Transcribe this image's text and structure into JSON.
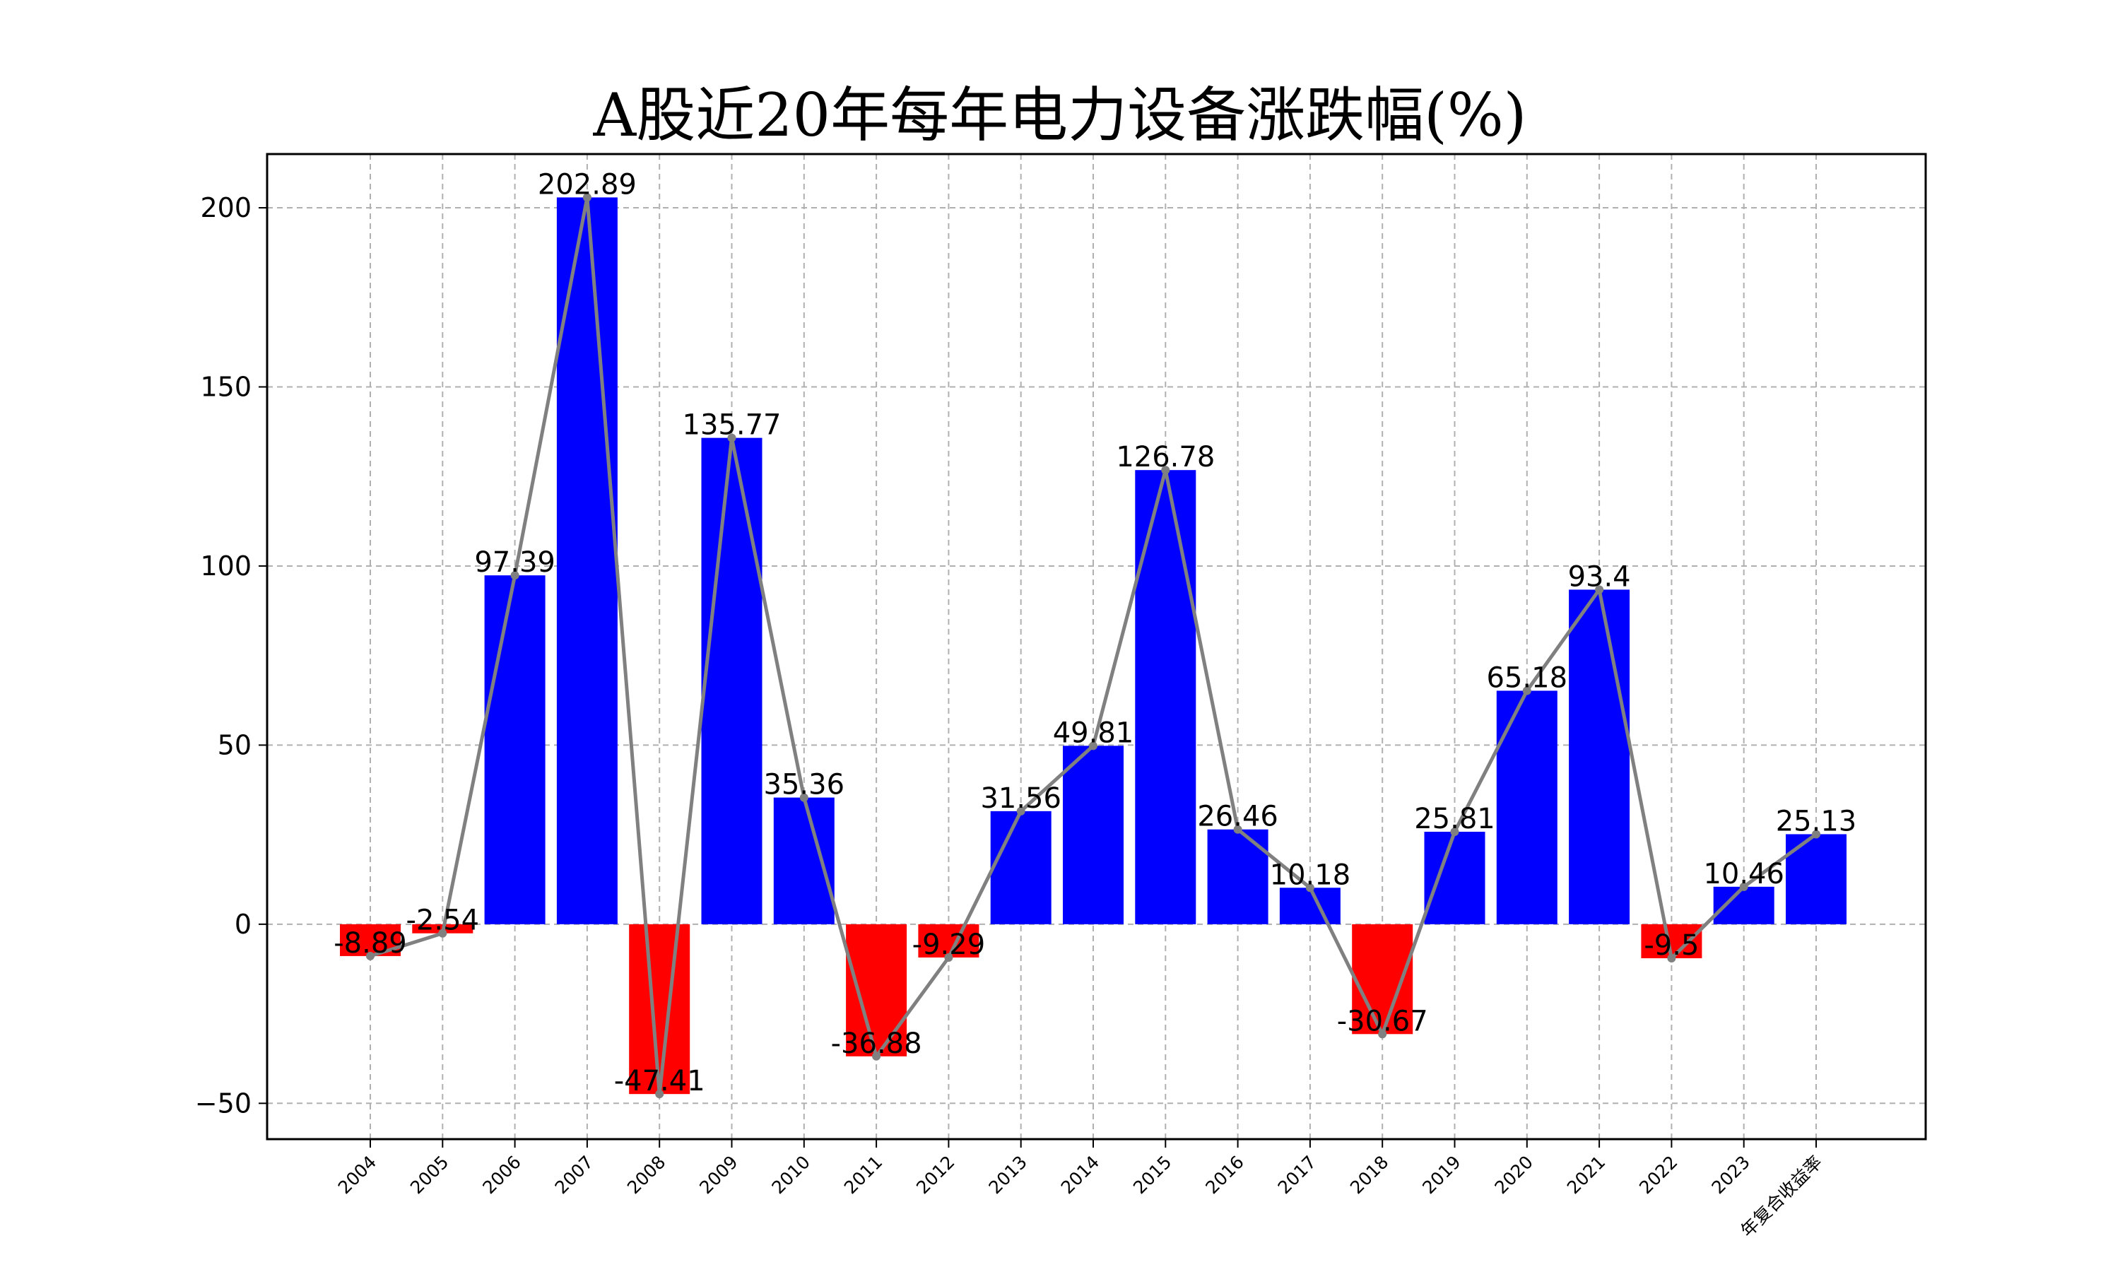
{
  "chart_data": {
    "type": "bar",
    "title": "A股近20年每年电力设备涨跌幅(%)",
    "xlabel": "",
    "ylabel": "",
    "ylim": [
      -60,
      215
    ],
    "yticks": [
      -50,
      0,
      50,
      100,
      150,
      200
    ],
    "grid": true,
    "categories": [
      "2004",
      "2005",
      "2006",
      "2007",
      "2008",
      "2009",
      "2010",
      "2011",
      "2012",
      "2013",
      "2014",
      "2015",
      "2016",
      "2017",
      "2018",
      "2019",
      "2020",
      "2021",
      "2022",
      "2023",
      "年复合收益率"
    ],
    "values": [
      -8.89,
      -2.54,
      97.39,
      202.89,
      -47.41,
      135.77,
      35.36,
      -36.88,
      -9.29,
      31.56,
      49.81,
      126.78,
      26.46,
      10.18,
      -30.67,
      25.81,
      65.18,
      93.4,
      -9.5,
      10.46,
      25.13
    ],
    "labels": [
      "-8.89",
      "-2.54",
      "97.39",
      "202.89",
      "-47.41",
      "135.77",
      "35.36",
      "-36.88",
      "-9.29",
      "31.56",
      "49.81",
      "126.78",
      "26.46",
      "10.18",
      "-30.67",
      "25.81",
      "65.18",
      "93.4",
      "-9.5",
      "10.46",
      "25.13"
    ],
    "line_series": {
      "name": "trend",
      "color": "#808080"
    },
    "colors": {
      "positive": "#0000ff",
      "negative": "#ff0000",
      "line": "#808080",
      "grid": "#b0b0b0"
    }
  }
}
